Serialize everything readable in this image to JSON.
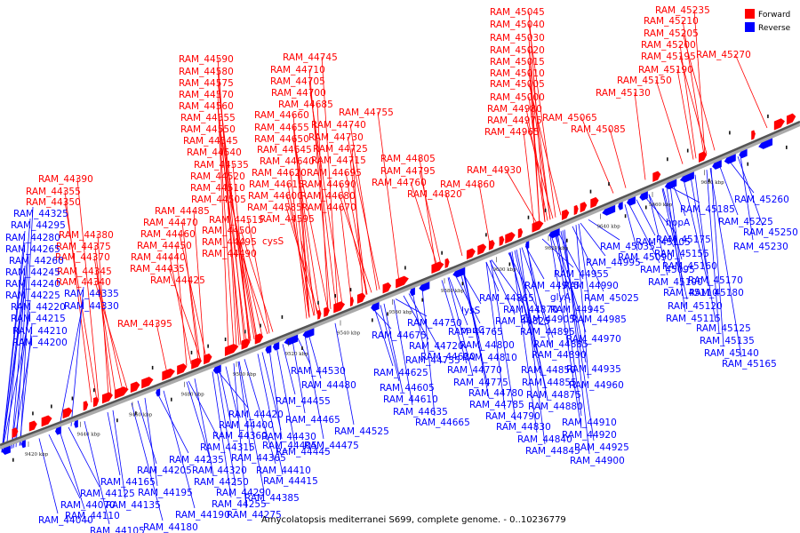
{
  "caption": "Amycolatopsis mediterranei S699, complete genome. - 0..10236779",
  "colors": {
    "forward": "#ff0000",
    "reverse": "#0000ff",
    "backbone": "#555555"
  },
  "legend": [
    {
      "label": "Forward",
      "color": "#ff0000"
    },
    {
      "label": "Reverse",
      "color": "#0000ff"
    }
  ],
  "ticks": [
    "9420 kbp",
    "9440 kbp",
    "9460 kbp",
    "9480 kbp",
    "9500 kbp",
    "9520 kbp",
    "9540 kbp",
    "9560 kbp",
    "9580 kbp",
    "9600 kbp",
    "9620 kbp",
    "9640 kbp",
    "9660 kbp",
    "9680 kbp"
  ],
  "forward_labels": [
    "RAM_45235",
    "RAM_45045",
    "RAM_45210",
    "RAM_45040",
    "RAM_45205",
    "RAM_45030",
    "RAM_45200",
    "RAM_45020",
    "RAM_45195",
    "RAM_45270",
    "RAM_45015",
    "RAM_45190",
    "RAM_45010",
    "RAM_45150",
    "RAM_45005",
    "RAM_45130",
    "RAM_45000",
    "RAM_44980",
    "RAM_44975",
    "RAM_45065",
    "RAM_44965",
    "RAM_45085",
    "RAM_44590",
    "RAM_44580",
    "RAM_44575",
    "RAM_44570",
    "RAM_44560",
    "RAM_44555",
    "RAM_44550",
    "RAM_44545",
    "RAM_44540",
    "RAM_44535",
    "RAM_44520",
    "RAM_44510",
    "RAM_44505",
    "RAM_44485",
    "RAM_44470",
    "RAM_44515",
    "RAM_44460",
    "RAM_44500",
    "RAM_44450",
    "RAM_44495",
    "RAM_44440",
    "RAM_44490",
    "RAM_44435",
    "RAM_44425",
    "RAM_44745",
    "RAM_44710",
    "RAM_44705",
    "RAM_44700",
    "RAM_44685",
    "RAM_44660",
    "RAM_44655",
    "RAM_44650",
    "RAM_44645",
    "RAM_44640",
    "RAM_44620",
    "RAM_44615",
    "RAM_44600",
    "RAM_44585",
    "RAM_44595",
    "cysS",
    "RAM_44755",
    "RAM_44740",
    "RAM_44730",
    "RAM_44725",
    "RAM_44715",
    "RAM_44695",
    "RAM_44690",
    "RAM_44680",
    "RAM_44670",
    "RAM_44805",
    "RAM_44795",
    "RAM_44760",
    "RAM_44930",
    "RAM_44860",
    "RAM_44820",
    "RAM_44390",
    "RAM_44355",
    "RAM_44350",
    "RAM_44380",
    "RAM_44375",
    "RAM_44370",
    "RAM_44345",
    "RAM_44340",
    "RAM_44395"
  ],
  "reverse_labels": [
    "RAM_44325",
    "RAM_44295",
    "RAM_44280",
    "RAM_44265",
    "RAM_44260",
    "RAM_44245",
    "RAM_44240",
    "RAM_44225",
    "RAM_44335",
    "RAM_44220",
    "RAM_44330",
    "RAM_44215",
    "RAM_44210",
    "RAM_44200",
    "RAM_45260",
    "RAM_45185",
    "hppA",
    "RAM_45225",
    "RAM_45250",
    "RAM_45175",
    "RAM_45230",
    "RAM_45105",
    "RAM_45155",
    "RAM_45035",
    "RAM_45090",
    "RAM_45160",
    "RAM_44995",
    "RAM_45095",
    "RAM_45170",
    "RAM_45100",
    "RAM_45180",
    "RAM_44955",
    "RAM_45110",
    "RAM_44915",
    "RAM_44990",
    "RAM_45025",
    "RAM_44865",
    "glyA",
    "RAM_45120",
    "RAM_44870",
    "RAM_44945",
    "RAM_45115",
    "RAM_44825",
    "RAM_44905",
    "RAM_44985",
    "lysS",
    "RAM_45125",
    "RAM_44750",
    "RAM_44895",
    "RAM_44765",
    "panC",
    "RAM_44970",
    "RAM_45135",
    "RAM_44675",
    "RAM_44720",
    "RAM_44885",
    "RAM_45140",
    "RAM_44800",
    "RAM_44890",
    "RAM_44630",
    "RAM_44735",
    "RAM_44810",
    "RAM_44935",
    "RAM_45165",
    "RAM_44530",
    "RAM_44625",
    "RAM_44770",
    "RAM_44850",
    "RAM_44480",
    "RAM_44605",
    "RAM_44775",
    "RAM_44855",
    "RAM_44960",
    "RAM_44610",
    "RAM_44780",
    "RAM_44875",
    "RAM_44455",
    "RAM_44635",
    "RAM_44785",
    "RAM_44880",
    "RAM_44665",
    "RAM_44790",
    "RAM_44910",
    "RAM_44420",
    "RAM_44465",
    "RAM_44525",
    "RAM_44830",
    "RAM_44920",
    "RAM_44400",
    "RAM_44430",
    "RAM_44840",
    "RAM_44925",
    "RAM_44360",
    "RAM_44475",
    "RAM_44845",
    "RAM_44315",
    "RAM_44405",
    "RAM_44445",
    "RAM_44900",
    "RAM_44235",
    "RAM_44365",
    "RAM_44205",
    "RAM_44320",
    "RAM_44410",
    "RAM_44165",
    "RAM_44250",
    "RAM_44415",
    "RAM_44125",
    "RAM_44195",
    "RAM_44290",
    "RAM_44385",
    "RAM_44070",
    "RAM_44135",
    "RAM_44255",
    "RAM_44110",
    "RAM_44190",
    "RAM_44275",
    "RAM_44040",
    "RAM_44105",
    "RAM_44180"
  ]
}
